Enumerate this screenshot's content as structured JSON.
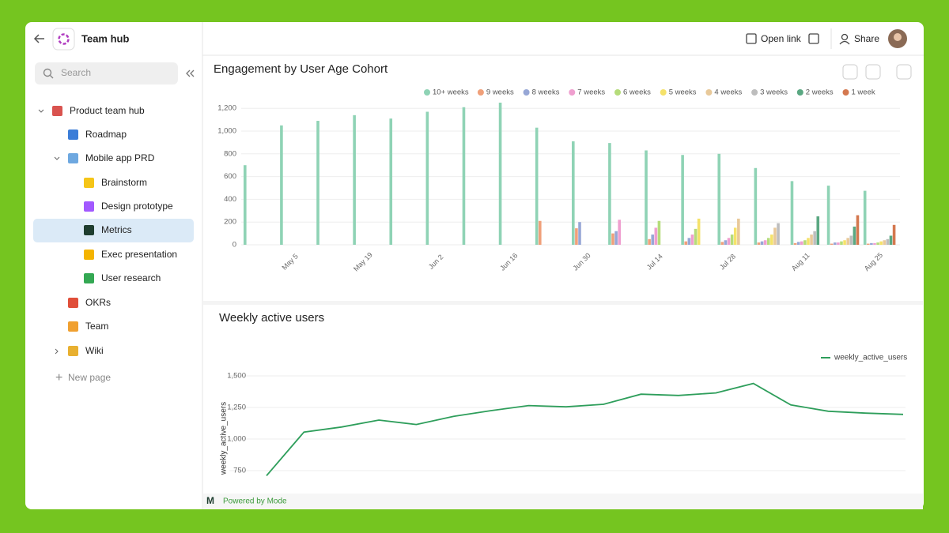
{
  "sidebar": {
    "title": "Team hub",
    "search": "Search",
    "pages": [
      "Product team hub",
      "Roadmap",
      "Mobile app PRD",
      "Brainstorm",
      "Design prototype",
      "Metrics",
      "Exec presentation",
      "User research",
      "OKRs",
      "Team",
      "Wiki"
    ],
    "new_page": "New page"
  },
  "header": {
    "open_link": "Open link",
    "share": "Share"
  },
  "footer": "Powered by Mode",
  "chart_data": [
    {
      "type": "bar",
      "title": "Engagement by User Age Cohort",
      "categories": [
        null,
        "May 5",
        null,
        "May 19",
        null,
        "Jun 2",
        null,
        "Jun 16",
        null,
        "Jun 30",
        null,
        "Jul 14",
        null,
        "Jul 28",
        null,
        "Aug 11",
        null,
        "Aug 25"
      ],
      "series": [
        {
          "name": "10+ weeks",
          "color": "#8fd3b5",
          "values": [
            700,
            1050,
            1090,
            1140,
            1110,
            1170,
            1210,
            1250,
            1030,
            910,
            895,
            830,
            790,
            800,
            675,
            560,
            520,
            475
          ]
        },
        {
          "name": "9 weeks",
          "color": "#f0a07a",
          "values": [
            null,
            null,
            null,
            null,
            null,
            null,
            null,
            null,
            210,
            145,
            100,
            50,
            30,
            25,
            20,
            15,
            10,
            10
          ]
        },
        {
          "name": "8 weeks",
          "color": "#97a7d6",
          "values": [
            null,
            null,
            null,
            null,
            null,
            null,
            null,
            null,
            null,
            200,
            120,
            90,
            60,
            40,
            30,
            25,
            20,
            15
          ]
        },
        {
          "name": "7 weeks",
          "color": "#ef9fcf",
          "values": [
            null,
            null,
            null,
            null,
            null,
            null,
            null,
            null,
            null,
            null,
            220,
            150,
            90,
            60,
            40,
            30,
            20,
            15
          ]
        },
        {
          "name": "6 weeks",
          "color": "#b5dc7a",
          "values": [
            null,
            null,
            null,
            null,
            null,
            null,
            null,
            null,
            null,
            null,
            null,
            210,
            140,
            90,
            60,
            40,
            30,
            20
          ]
        },
        {
          "name": "5 weeks",
          "color": "#f5e26a",
          "values": [
            null,
            null,
            null,
            null,
            null,
            null,
            null,
            null,
            null,
            null,
            null,
            null,
            230,
            150,
            90,
            60,
            40,
            30
          ]
        },
        {
          "name": "4 weeks",
          "color": "#e8c99a",
          "values": [
            null,
            null,
            null,
            null,
            null,
            null,
            null,
            null,
            null,
            null,
            null,
            null,
            null,
            230,
            150,
            90,
            60,
            40
          ]
        },
        {
          "name": "3 weeks",
          "color": "#bdbdbd",
          "values": [
            null,
            null,
            null,
            null,
            null,
            null,
            null,
            null,
            null,
            null,
            null,
            null,
            null,
            null,
            190,
            120,
            80,
            50
          ]
        },
        {
          "name": "2 weeks",
          "color": "#5aa882",
          "values": [
            null,
            null,
            null,
            null,
            null,
            null,
            null,
            null,
            null,
            null,
            null,
            null,
            null,
            null,
            null,
            250,
            160,
            80
          ]
        },
        {
          "name": "1 week",
          "color": "#d4784f",
          "values": [
            null,
            null,
            null,
            null,
            null,
            null,
            null,
            null,
            null,
            null,
            null,
            null,
            null,
            null,
            null,
            null,
            260,
            175
          ]
        }
      ],
      "ylim": [
        0,
        1300
      ],
      "yticks": [
        0,
        200,
        400,
        600,
        800,
        {
          "value": 1000,
          "label": "1,000"
        },
        {
          "value": 1200,
          "label": "1,200"
        }
      ],
      "grid": true,
      "legend": "top"
    },
    {
      "type": "line",
      "title": "Weekly active users",
      "y_label": "weekly_active_users",
      "series": [
        {
          "name": "weekly_active_users",
          "color": "#2e9e5b",
          "values": [
            710,
            1055,
            1095,
            1150,
            1115,
            1180,
            1225,
            1265,
            1255,
            1275,
            1355,
            1345,
            1365,
            1440,
            1270,
            1220,
            1205,
            1195
          ]
        }
      ],
      "ylim": [
        575,
        1600
      ],
      "yticks": [
        750,
        {
          "value": 1000,
          "label": "1,000"
        },
        {
          "value": 1250,
          "label": "1,250"
        },
        {
          "value": 1500,
          "label": "1,500"
        }
      ],
      "grid": true,
      "legend": "top-right"
    }
  ]
}
